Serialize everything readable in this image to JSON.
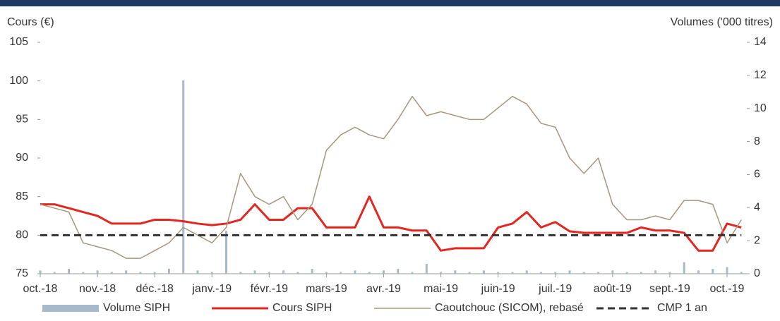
{
  "chart_data": {
    "type": "combo",
    "ylabel": "Cours (€)",
    "y2label": "Volumes ('000 titres)",
    "categories": [
      "oct.-18",
      null,
      null,
      null,
      "nov.-18",
      null,
      null,
      null,
      "déc.-18",
      null,
      null,
      null,
      "janv.-19",
      null,
      null,
      null,
      "févr.-19",
      null,
      null,
      null,
      "mars-19",
      null,
      null,
      null,
      "avr.-19",
      null,
      null,
      null,
      "mai-19",
      null,
      null,
      null,
      "juin-19",
      null,
      null,
      null,
      "juil.-19",
      null,
      null,
      null,
      "août-19",
      null,
      null,
      null,
      "sept.-19",
      null,
      null,
      null,
      "oct.-19",
      null
    ],
    "ylim": [
      75,
      105
    ],
    "yticks": [
      75,
      80,
      85,
      90,
      95,
      100,
      105
    ],
    "y2lim": [
      0,
      14
    ],
    "y2ticks": [
      0,
      2,
      4,
      6,
      8,
      10,
      12,
      14
    ],
    "legend": "bottom",
    "series": [
      {
        "name": "Volume SIPH",
        "kind": "bar",
        "axis": "y2",
        "color": "#a9b9cc",
        "values": [
          0.2,
          0.1,
          0.3,
          0.1,
          0.2,
          0.1,
          0.2,
          0.1,
          0.1,
          0.3,
          11.7,
          0.2,
          0.1,
          2.6,
          0.1,
          0.2,
          0.1,
          0.2,
          0.1,
          0.3,
          0.1,
          0.1,
          0.2,
          0.1,
          0.2,
          0.3,
          0.1,
          0.6,
          0.1,
          0.2,
          0.1,
          0.2,
          0.1,
          0.1,
          0.2,
          0.1,
          0.1,
          0.2,
          0.1,
          0.1,
          0.2,
          0.1,
          0.1,
          0.2,
          0.1,
          0.7,
          0.2,
          0.3,
          0.4,
          0.1
        ]
      },
      {
        "name": "Cours SIPH",
        "kind": "line",
        "color": "#e32620",
        "width": 3,
        "values": [
          84,
          84,
          83.5,
          83,
          82.5,
          81.5,
          81.5,
          81.5,
          82,
          82,
          81.8,
          81.5,
          81.3,
          81.5,
          82,
          84,
          82,
          82,
          83.5,
          83.5,
          81,
          81,
          81,
          85,
          81,
          81,
          80.6,
          80.6,
          78,
          78.3,
          78.3,
          78.3,
          81,
          81.5,
          83,
          81,
          81.7,
          80.5,
          80.3,
          80.3,
          80.3,
          80.3,
          81,
          80.6,
          80.6,
          80.3,
          78,
          78,
          81.5,
          81
        ]
      },
      {
        "name": "Caoutchouc (SICOM), rebasé",
        "kind": "line",
        "color": "#a8957a",
        "width": 1.5,
        "values": [
          84,
          83.5,
          83,
          79,
          78.5,
          78,
          77,
          77,
          78,
          79,
          81,
          80,
          79,
          81,
          88,
          85,
          84,
          85,
          82,
          84,
          91,
          93,
          94,
          93,
          92.5,
          95,
          98,
          95.5,
          96,
          95.5,
          95,
          95,
          96.5,
          98,
          97,
          94.5,
          94,
          90,
          88,
          90,
          84,
          82,
          82,
          82.5,
          82,
          84.5,
          84.5,
          84,
          79,
          82
        ]
      },
      {
        "name": "CMP 1 an",
        "kind": "line",
        "style": "dashed",
        "color": "#333333",
        "width": 3,
        "values": [
          80,
          80,
          80,
          80,
          80,
          80,
          80,
          80,
          80,
          80,
          80,
          80,
          80,
          80,
          80,
          80,
          80,
          80,
          80,
          80,
          80,
          80,
          80,
          80,
          80,
          80,
          80,
          80,
          80,
          80,
          80,
          80,
          80,
          80,
          80,
          80,
          80,
          80,
          80,
          80,
          80,
          80,
          80,
          80,
          80,
          80,
          80,
          80,
          80,
          80
        ]
      }
    ]
  }
}
